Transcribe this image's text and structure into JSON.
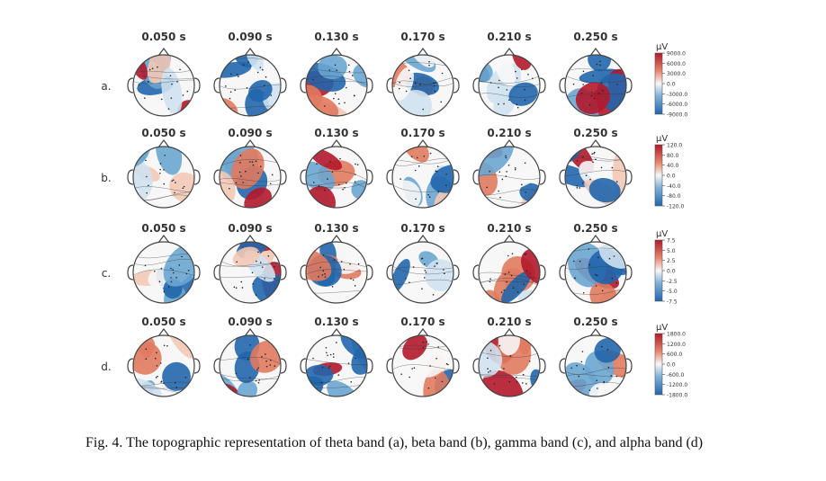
{
  "figure": {
    "rows": [
      {
        "label": "a.",
        "times": [
          "0.050 s",
          "0.090 s",
          "0.130 s",
          "0.170 s",
          "0.210 s",
          "0.250 s"
        ],
        "unit": "µV",
        "ticks": [
          "9000.0",
          "6000.0",
          "3000.0",
          "0.0",
          "-3000.0",
          "-6000.0",
          "-9000.0"
        ]
      },
      {
        "label": "b.",
        "times": [
          "0.050 s",
          "0.090 s",
          "0.130 s",
          "0.170 s",
          "0.210 s",
          "0.250 s"
        ],
        "unit": "µV",
        "ticks": [
          "120.0",
          "80.0",
          "40.0",
          "0.0",
          "-40.0",
          "-80.0",
          "-120.0"
        ]
      },
      {
        "label": "c.",
        "times": [
          "0.050 s",
          "0.090 s",
          "0.130 s",
          "0.170 s",
          "0.210 s",
          "0.250 s"
        ],
        "unit": "µV",
        "ticks": [
          "7.5",
          "5.0",
          "2.5",
          "0.0",
          "-2.5",
          "-5.0",
          "-7.5"
        ]
      },
      {
        "label": "d.",
        "times": [
          "0.050 s",
          "0.090 s",
          "0.130 s",
          "0.170 s",
          "0.210 s",
          "0.250 s"
        ],
        "unit": "µV",
        "ticks": [
          "1800.0",
          "1200.0",
          "600.0",
          "0.0",
          "-600.0",
          "-1200.0",
          "-1800.0"
        ]
      }
    ],
    "colormap": {
      "positive": "#b2182b",
      "mid": "#f7f7f7",
      "negative": "#2166ac"
    },
    "caption": "Fig. 4.   The topographic representation of theta band (a), beta band (b), gamma band (c), and alpha band (d)"
  }
}
